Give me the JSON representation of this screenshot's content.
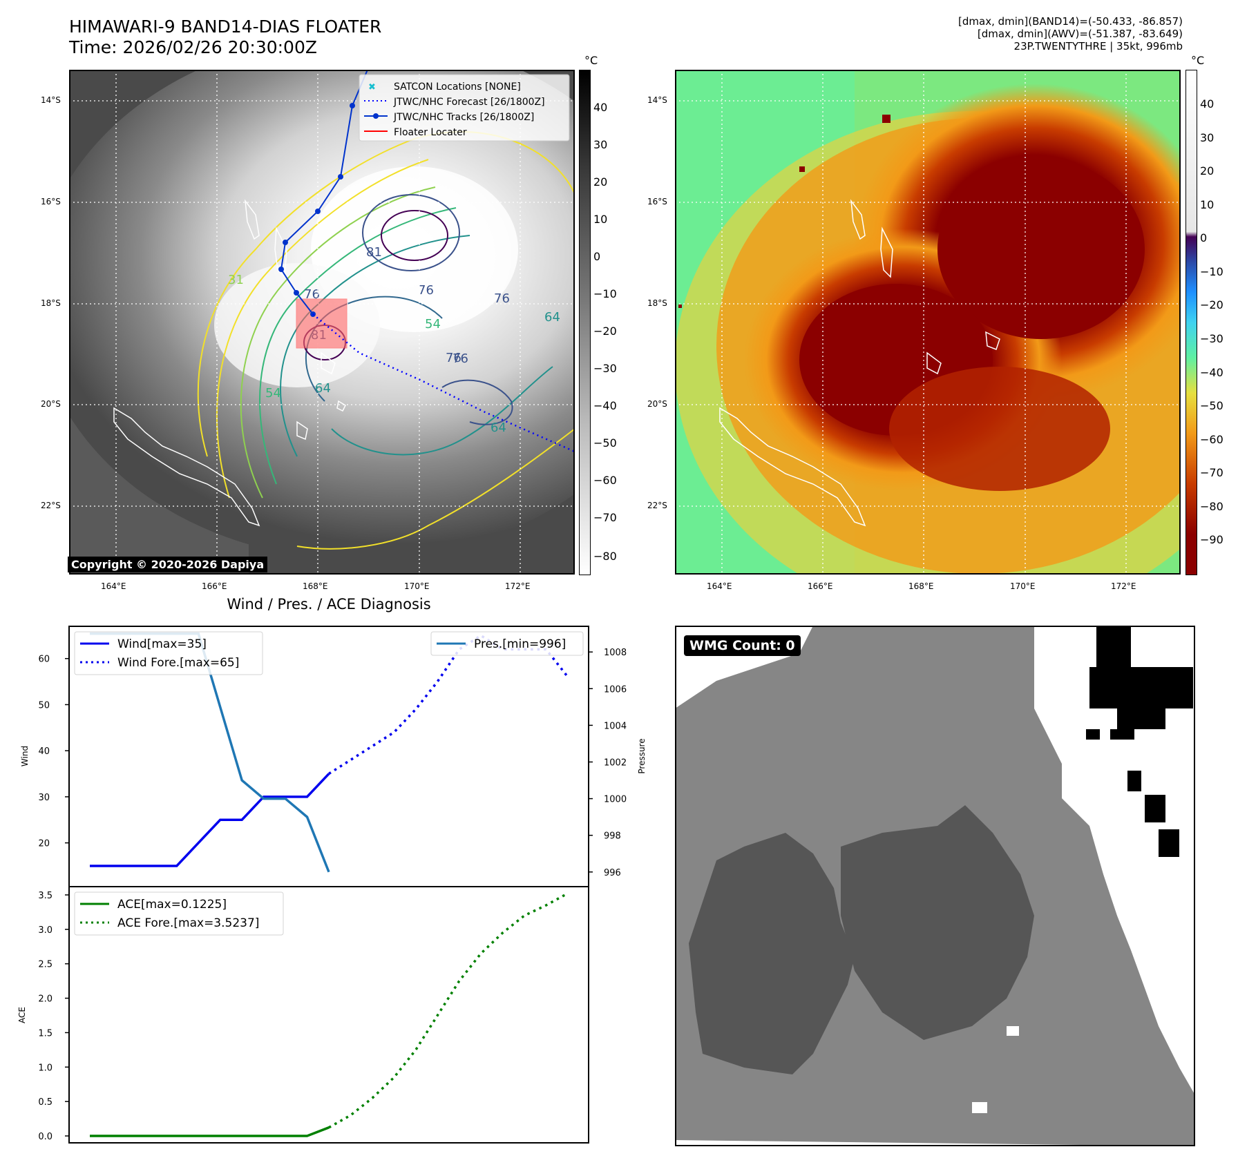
{
  "colors": {
    "wind": "#0000ee",
    "pressure": "#1f77b4",
    "ace": "#008000",
    "track": "#0033cc",
    "floater": "#ff0000"
  },
  "header": {
    "title": "HIMAWARI-9 BAND14-DIAS FLOATER",
    "time": "Time: 2026/02/26 20:30:00Z",
    "meta": [
      "[dmax, dmin](BAND14)=(-50.433, -86.857)",
      "[dmax, dmin](AWV)=(-51.387, -83.649)",
      "23P.TWENTYTHRE | 35kt, 996mb"
    ]
  },
  "map": {
    "lat_labels": [
      "14°S",
      "16°S",
      "18°S",
      "20°S",
      "22°S"
    ],
    "lon_labels": [
      "164°E",
      "166°E",
      "168°E",
      "170°E",
      "172°E"
    ],
    "legend": [
      "SATCON Locations [NONE]",
      "JTWC/NHC Forecast [26/1800Z]",
      "JTWC/NHC Tracks [26/1800Z]",
      "Floater Locater"
    ],
    "copyright": "Copyright © 2020-2026 Dapiya",
    "contour_labels": [
      "81",
      "76",
      "76",
      "81",
      "76",
      "64",
      "54",
      "64",
      "64",
      "54",
      "76",
      "31",
      "76"
    ],
    "ir_colorbar": {
      "unit": "°C",
      "ticks": [
        "40",
        "30",
        "20",
        "10",
        "0",
        "−10",
        "−20",
        "−30",
        "−40",
        "−50",
        "−60",
        "−70",
        "−80"
      ]
    },
    "awv_colorbar": {
      "unit": "°C",
      "ticks": [
        "40",
        "30",
        "20",
        "10",
        "0",
        "−10",
        "−20",
        "−30",
        "−40",
        "−50",
        "−60",
        "−70",
        "−80",
        "−90"
      ]
    }
  },
  "wmg": {
    "label": "WMG Count: 0"
  },
  "chart_data": [
    {
      "type": "line",
      "title": "Wind / Pres. / ACE Diagnosis",
      "ylabel": "Wind",
      "ylabel2": "Pressure",
      "ylim": [
        10.5,
        67
      ],
      "ylim2": [
        995.2,
        1009.4
      ],
      "yticks": [
        "20",
        "30",
        "40",
        "50",
        "60"
      ],
      "yticks2": [
        "996",
        "998",
        "1000",
        "1002",
        "1004",
        "1006",
        "1008"
      ],
      "series": [
        {
          "name": "Wind[max=35]",
          "style": "solid",
          "axis": "left",
          "x": [
            0,
            1,
            2,
            3,
            4,
            5,
            6,
            7,
            8,
            9,
            10,
            11
          ],
          "values": [
            15,
            15,
            15,
            15,
            15,
            20,
            25,
            25,
            30,
            30,
            30,
            35
          ]
        },
        {
          "name": "Wind Fore.[max=65]",
          "style": "dotted",
          "axis": "left",
          "x": [
            11,
            12,
            13,
            14,
            15,
            16,
            17,
            18,
            19,
            20,
            21,
            22
          ],
          "values": [
            35,
            38,
            41,
            44,
            49,
            55,
            62,
            65,
            62,
            62,
            62,
            56
          ]
        },
        {
          "name": "Pres.[min=996]",
          "style": "solid",
          "axis": "right",
          "x": [
            0,
            1,
            2,
            3,
            4,
            5,
            6,
            7,
            8,
            9,
            10,
            11
          ],
          "values": [
            1009,
            1009,
            1009,
            1009,
            1009,
            1009,
            1005,
            1001,
            1000,
            1000,
            999,
            996
          ]
        }
      ]
    },
    {
      "type": "line",
      "ylabel": "ACE",
      "ylim": [
        -0.1,
        3.62
      ],
      "yticks": [
        "0.0",
        "0.5",
        "1.0",
        "1.5",
        "2.0",
        "2.5",
        "3.0",
        "3.5"
      ],
      "series": [
        {
          "name": "ACE[max=0.1225]",
          "style": "solid",
          "x": [
            0,
            1,
            2,
            3,
            4,
            5,
            6,
            7,
            8,
            9,
            10,
            11
          ],
          "values": [
            0,
            0,
            0,
            0,
            0,
            0,
            0,
            0,
            0,
            0,
            0,
            0.1225
          ]
        },
        {
          "name": "ACE Fore.[max=3.5237]",
          "style": "dotted",
          "x": [
            11,
            12,
            13,
            14,
            15,
            16,
            17,
            18,
            19,
            20,
            21,
            22
          ],
          "values": [
            0.1225,
            0.3,
            0.55,
            0.85,
            1.25,
            1.75,
            2.25,
            2.65,
            2.95,
            3.2,
            3.35,
            3.5237
          ]
        }
      ]
    }
  ]
}
